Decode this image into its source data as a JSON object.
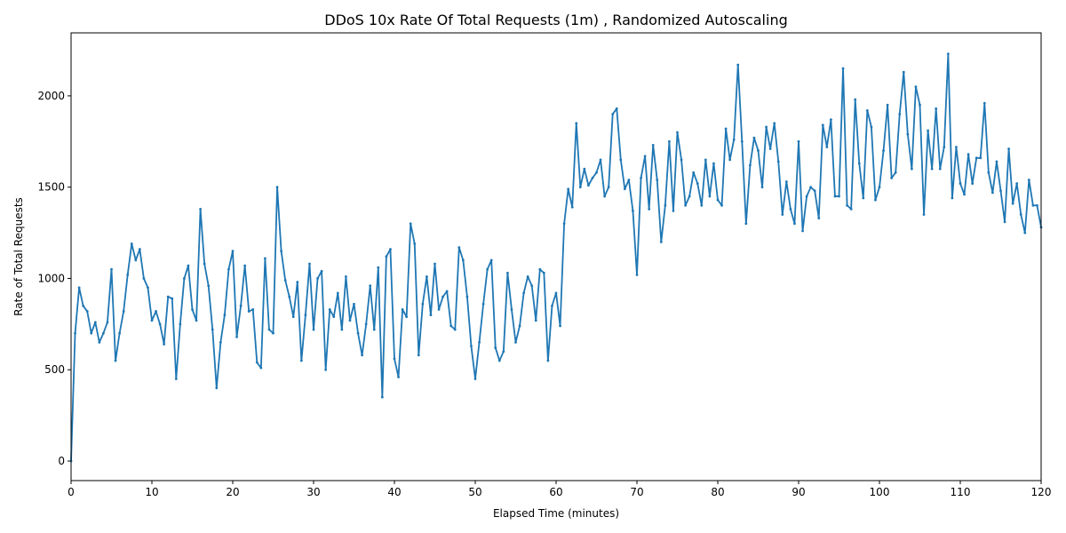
{
  "chart_data": {
    "type": "line",
    "title": "DDoS 10x Rate Of Total Requests (1m) , Randomized Autoscaling",
    "x_label": "Elapsed Time (minutes)",
    "y_label": "Rate of Total Requests",
    "xlim": [
      0,
      120
    ],
    "ylim": [
      -107,
      2345
    ],
    "xticks": [
      0,
      10,
      20,
      30,
      40,
      50,
      60,
      70,
      80,
      90,
      100,
      110,
      120
    ],
    "yticks": [
      0,
      500,
      1000,
      1500,
      2000
    ],
    "grid": false,
    "series": [
      {
        "color": "#1f77b4",
        "x": [
          0,
          0.5,
          1,
          1.5,
          2,
          2.5,
          3,
          3.5,
          4,
          4.5,
          5,
          5.5,
          6,
          6.5,
          7,
          7.5,
          8,
          8.5,
          9,
          9.5,
          10,
          10.5,
          11,
          11.5,
          12,
          12.5,
          13,
          13.5,
          14,
          14.5,
          15,
          15.5,
          16,
          16.5,
          17,
          17.5,
          18,
          18.5,
          19,
          19.5,
          20,
          20.5,
          21,
          21.5,
          22,
          22.5,
          23,
          23.5,
          24,
          24.5,
          25,
          25.5,
          26,
          26.5,
          27,
          27.5,
          28,
          28.5,
          29,
          29.5,
          30,
          30.5,
          31,
          31.5,
          32,
          32.5,
          33,
          33.5,
          34,
          34.5,
          35,
          35.5,
          36,
          36.5,
          37,
          37.5,
          38,
          38.5,
          39,
          39.5,
          40,
          40.5,
          41,
          41.5,
          42,
          42.5,
          43,
          43.5,
          44,
          44.5,
          45,
          45.5,
          46,
          46.5,
          47,
          47.5,
          48,
          48.5,
          49,
          49.5,
          50,
          50.5,
          51,
          51.5,
          52,
          52.5,
          53,
          53.5,
          54,
          54.5,
          55,
          55.5,
          56,
          56.5,
          57,
          57.5,
          58,
          58.5,
          59,
          59.5,
          60,
          60.5,
          61,
          61.5,
          62,
          62.5,
          63,
          63.5,
          64,
          64.5,
          65,
          65.5,
          66,
          66.5,
          67,
          67.5,
          68,
          68.5,
          69,
          69.5,
          70,
          70.5,
          71,
          71.5,
          72,
          72.5,
          73,
          73.5,
          74,
          74.5,
          75,
          75.5,
          76,
          76.5,
          77,
          77.5,
          78,
          78.5,
          79,
          79.5,
          80,
          80.5,
          81,
          81.5,
          82,
          82.5,
          83,
          83.5,
          84,
          84.5,
          85,
          85.5,
          86,
          86.5,
          87,
          87.5,
          88,
          88.5,
          89,
          89.5,
          90,
          90.5,
          91,
          91.5,
          92,
          92.5,
          93,
          93.5,
          94,
          94.5,
          95,
          95.5,
          96,
          96.5,
          97,
          97.5,
          98,
          98.5,
          99,
          99.5,
          100,
          100.5,
          101,
          101.5,
          102,
          102.5,
          103,
          103.5,
          104,
          104.5,
          105,
          105.5,
          106,
          106.5,
          107,
          107.5,
          108,
          108.5,
          109,
          109.5,
          110,
          110.5,
          111,
          111.5,
          112,
          112.5,
          113,
          113.5,
          114,
          114.5,
          115,
          115.5,
          116,
          116.5,
          117,
          117.5,
          118,
          118.5,
          119,
          119.5,
          120
        ],
        "values": [
          0,
          700,
          950,
          850,
          820,
          700,
          760,
          650,
          700,
          760,
          1050,
          550,
          700,
          820,
          1020,
          1190,
          1100,
          1160,
          1000,
          950,
          770,
          820,
          750,
          640,
          900,
          890,
          450,
          750,
          1000,
          1070,
          830,
          770,
          1380,
          1080,
          960,
          720,
          400,
          650,
          800,
          1050,
          1150,
          680,
          850,
          1070,
          820,
          830,
          540,
          510,
          1110,
          720,
          700,
          1500,
          1150,
          990,
          900,
          790,
          980,
          550,
          800,
          1080,
          720,
          1000,
          1040,
          500,
          830,
          790,
          920,
          720,
          1010,
          770,
          860,
          700,
          580,
          750,
          960,
          720,
          1060,
          350,
          1120,
          1160,
          560,
          460,
          830,
          790,
          1300,
          1190,
          580,
          860,
          1010,
          800,
          1080,
          830,
          900,
          930,
          740,
          720,
          1170,
          1100,
          900,
          630,
          450,
          650,
          860,
          1050,
          1100,
          620,
          550,
          600,
          1030,
          830,
          650,
          740,
          920,
          1010,
          960,
          770,
          1050,
          1030,
          550,
          850,
          920,
          740,
          1300,
          1490,
          1390,
          1850,
          1500,
          1600,
          1510,
          1550,
          1580,
          1650,
          1450,
          1500,
          1900,
          1930,
          1650,
          1490,
          1540,
          1370,
          1020,
          1550,
          1670,
          1380,
          1730,
          1540,
          1200,
          1400,
          1750,
          1370,
          1800,
          1650,
          1400,
          1450,
          1580,
          1520,
          1400,
          1650,
          1450,
          1630,
          1430,
          1400,
          1820,
          1650,
          1760,
          2170,
          1750,
          1300,
          1620,
          1770,
          1700,
          1500,
          1830,
          1710,
          1850,
          1640,
          1350,
          1530,
          1380,
          1300,
          1750,
          1260,
          1450,
          1500,
          1480,
          1330,
          1840,
          1720,
          1870,
          1450,
          1450,
          2150,
          1400,
          1380,
          1980,
          1630,
          1440,
          1920,
          1830,
          1430,
          1500,
          1700,
          1950,
          1550,
          1580,
          1900,
          2130,
          1790,
          1600,
          2050,
          1950,
          1350,
          1810,
          1600,
          1930,
          1600,
          1720,
          2230,
          1440,
          1720,
          1520,
          1460,
          1680,
          1520,
          1660,
          1660,
          1960,
          1580,
          1470,
          1640,
          1480,
          1310,
          1710,
          1410,
          1520,
          1350,
          1250,
          1540,
          1400,
          1400,
          1280
        ]
      }
    ]
  }
}
